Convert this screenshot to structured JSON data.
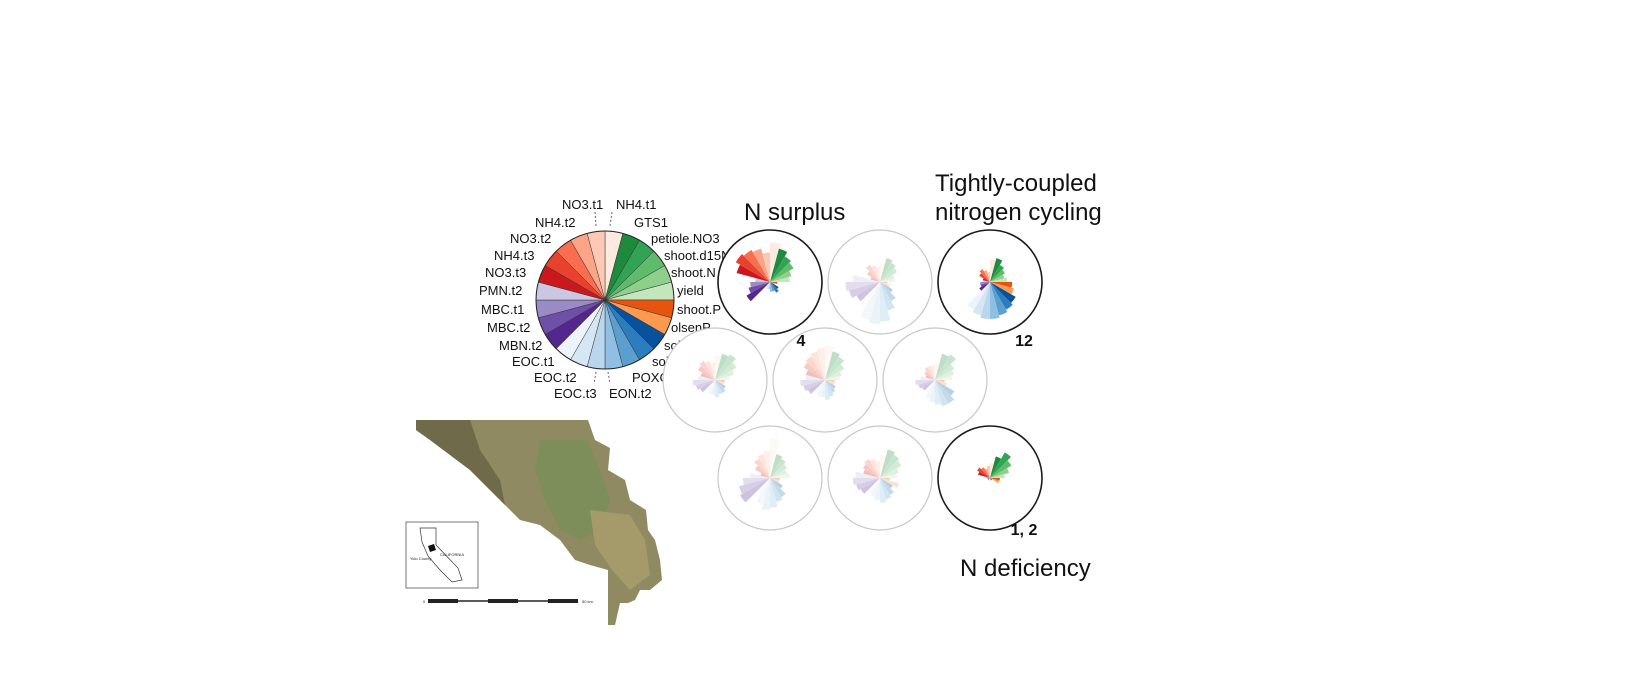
{
  "legend": {
    "variables": [
      {
        "label": "NH4.t1",
        "color": "#fdebe2"
      },
      {
        "label": "GTS1",
        "color": "#1e8a3c"
      },
      {
        "label": "petiole.NO3",
        "color": "#31a354"
      },
      {
        "label": "shoot.d15N",
        "color": "#5dbb6b"
      },
      {
        "label": "shoot.N",
        "color": "#8ed08b"
      },
      {
        "label": "yield",
        "color": "#c2e6bd"
      },
      {
        "label": "shoot.P",
        "color": "#e6550d"
      },
      {
        "label": "olsenP",
        "color": "#fd9a4f"
      },
      {
        "label": "soil.N",
        "color": "#08519c"
      },
      {
        "label": "soil.C",
        "color": "#2c7dbd"
      },
      {
        "label": "POXC",
        "color": "#5b9fd1"
      },
      {
        "label": "EON.t2",
        "color": "#8fbfe2"
      },
      {
        "label": "EOC.t3",
        "color": "#b9d6ec"
      },
      {
        "label": "EOC.t2",
        "color": "#d7e6f4"
      },
      {
        "label": "EOC.t1",
        "color": "#eef4fb"
      },
      {
        "label": "MBN.t2",
        "color": "#54278f"
      },
      {
        "label": "MBC.t2",
        "color": "#6f4fa8"
      },
      {
        "label": "MBC.t1",
        "color": "#9a8ac5"
      },
      {
        "label": "PMN.t2",
        "color": "#cbc6e2"
      },
      {
        "label": "NO3.t3",
        "color": "#cb181d"
      },
      {
        "label": "NH4.t3",
        "color": "#e8412e"
      },
      {
        "label": "NO3.t2",
        "color": "#f76e51"
      },
      {
        "label": "NH4.t2",
        "color": "#fba488"
      },
      {
        "label": "NO3.t1",
        "color": "#fcc9b4"
      }
    ]
  },
  "clusters": {
    "labels": {
      "surplus": "N surplus",
      "coupled_line1": "Tightly-coupled",
      "coupled_line2": "nitrogen cycling",
      "deficiency": "N deficiency"
    },
    "numbers": {
      "surplus": "4",
      "coupled": "12",
      "deficiency": "1, 2"
    }
  },
  "map": {
    "inset_title": "CALIFORNIA",
    "inset_county": "Yolo County",
    "scale_start": "0",
    "scale_end": "50 km"
  }
}
